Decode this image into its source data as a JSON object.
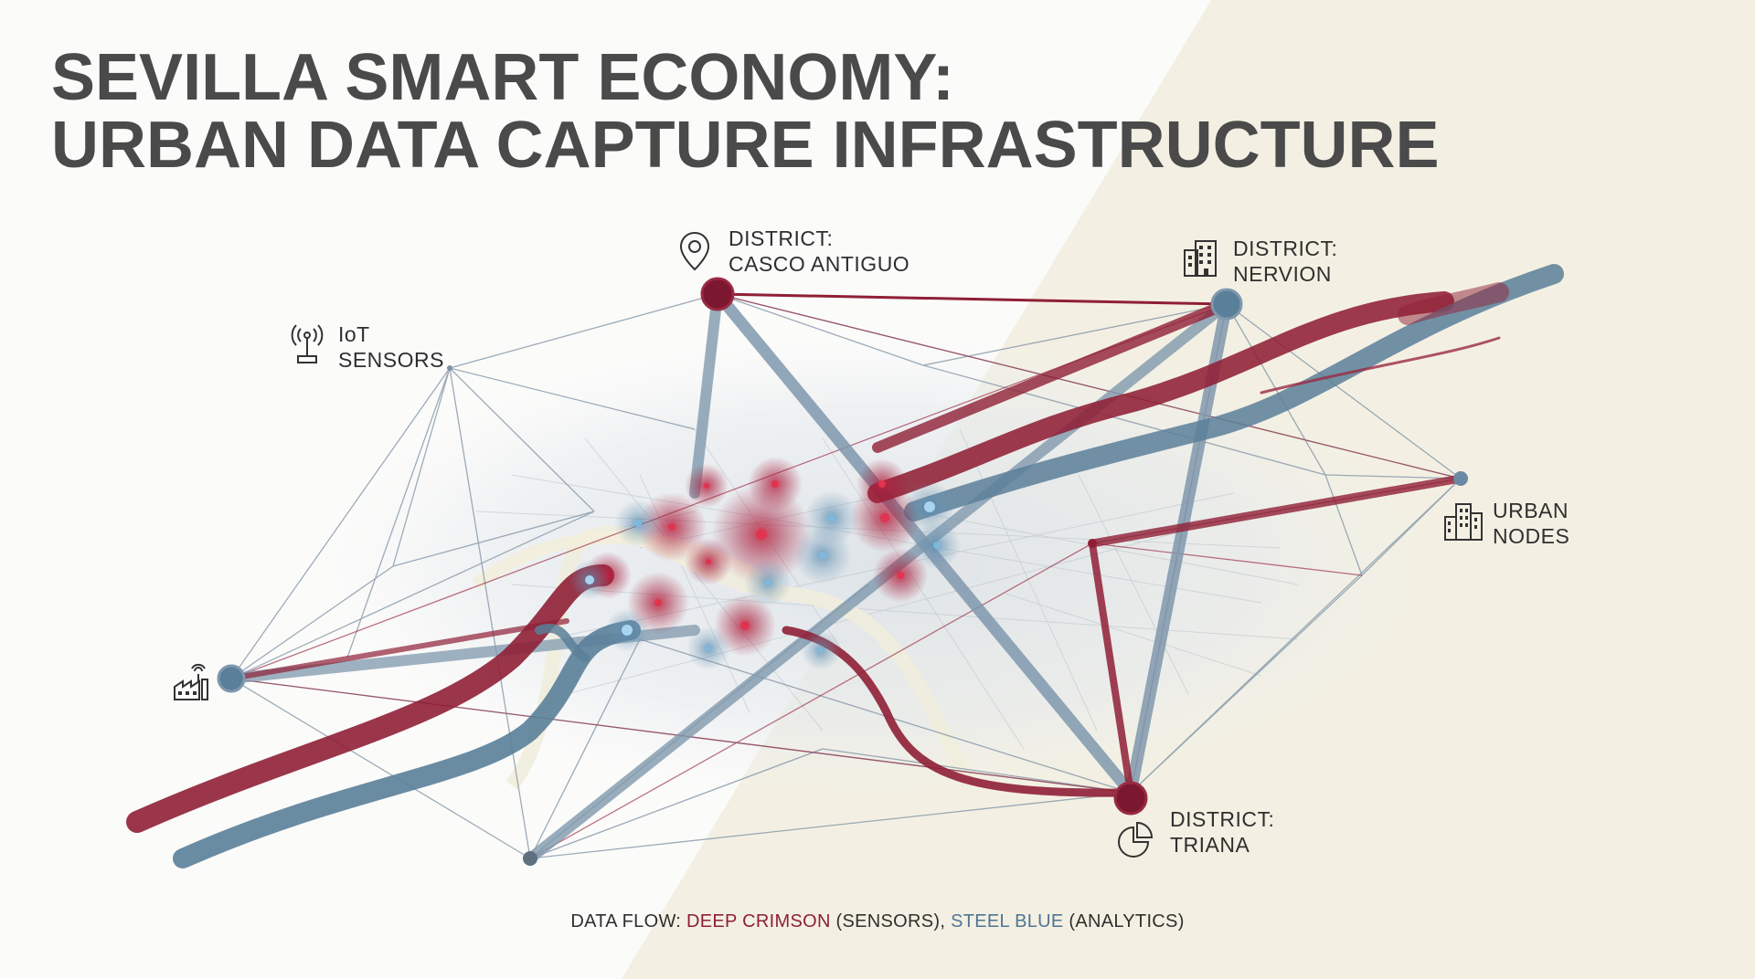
{
  "title": {
    "line1": "SEVILLA SMART ECONOMY:",
    "line2": "URBAN DATA CAPTURE INFRASTRUCTURE"
  },
  "labels": {
    "casco": {
      "line1": "DISTRICT:",
      "line2": "CASCO ANTIGUO",
      "icon": "location-pin-icon"
    },
    "nervion": {
      "line1": "DISTRICT:",
      "line2": "NERVION",
      "icon": "office-building-icon"
    },
    "iot": {
      "line1": "IoT",
      "line2": "SENSORS",
      "icon": "wireless-antenna-icon"
    },
    "urban": {
      "line1": "URBAN",
      "line2": "NODES",
      "icon": "city-buildings-icon"
    },
    "triana": {
      "line1": "DISTRICT:",
      "line2": "TRIANA",
      "icon": "pie-chart-icon"
    },
    "factory": {
      "icon": "factory-sensor-icon"
    }
  },
  "legend": {
    "prefix": "DATA FLOW: ",
    "crimson": "DEEP CRIMSON",
    "crimson_suffix": " (SENSORS), ",
    "blue": "STEEL BLUE",
    "blue_suffix": " (ANALYTICS)"
  },
  "colors": {
    "crimson": "#8f1f36",
    "steel_blue": "#5a7f99",
    "background_light": "#f3f0e3",
    "title": "#4a4a4a"
  }
}
